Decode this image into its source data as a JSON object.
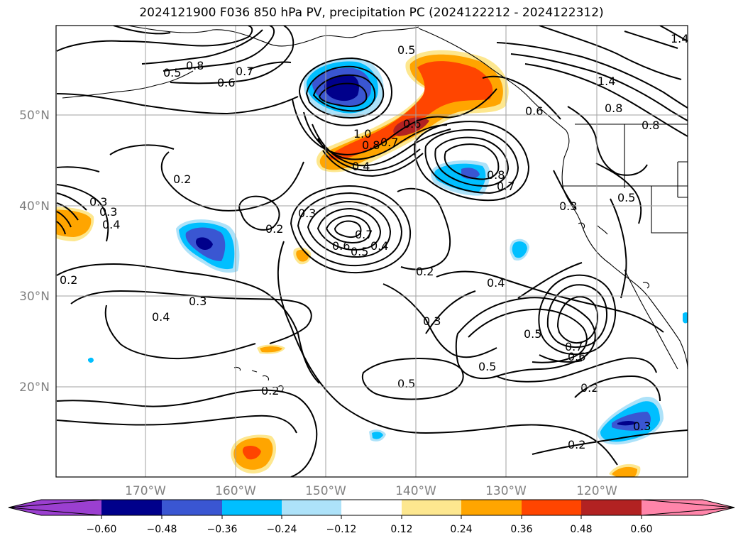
{
  "title": "2024121900 F036 850 hPa PV, precipitation PC (2024122212 - 2024122312)",
  "map": {
    "lon_labels": [
      "170°W",
      "160°W",
      "150°W",
      "140°W",
      "130°W",
      "120°W"
    ],
    "lat_labels": [
      "50°N",
      "40°N",
      "30°N",
      "20°N"
    ],
    "gridlines": true
  },
  "contour_labels": [
    "0.8",
    "0.7",
    "0.6",
    "0.5",
    "0.5",
    "1.0",
    "0.8",
    "0.7",
    "0.6",
    "0.4",
    "0.8",
    "0.7",
    "1.4",
    "1.4",
    "0.8",
    "0.8",
    "0.6",
    "0.2",
    "0.3",
    "0.3",
    "0.4",
    "0.2",
    "0.3",
    "0.7",
    "0.6",
    "0.5",
    "0.4",
    "0.2",
    "0.3",
    "0.5",
    "0.2",
    "0.3",
    "0.4",
    "0.3",
    "0.4",
    "0.5",
    "0.5",
    "0.7",
    "0.6",
    "0.5",
    "0.2",
    "0.3",
    "0.2",
    "0.2"
  ],
  "colorbar": {
    "colors": {
      "extend_low": "#9b3fd0",
      "-0.60": "#00008b",
      "-0.48": "#3a56d2",
      "-0.36": "#00bfff",
      "-0.24": "#ade2f9",
      "-0.12": "#ffffff",
      "0.12": "#fde78f",
      "0.24": "#ffa500",
      "0.36": "#ff4500",
      "0.48": "#b22222",
      "extend_high": "#ff85aa"
    },
    "tick_labels": [
      "−0.60",
      "−0.48",
      "−0.36",
      "−0.24",
      "−0.12",
      "0.12",
      "0.24",
      "0.36",
      "0.48",
      "0.60"
    ]
  }
}
